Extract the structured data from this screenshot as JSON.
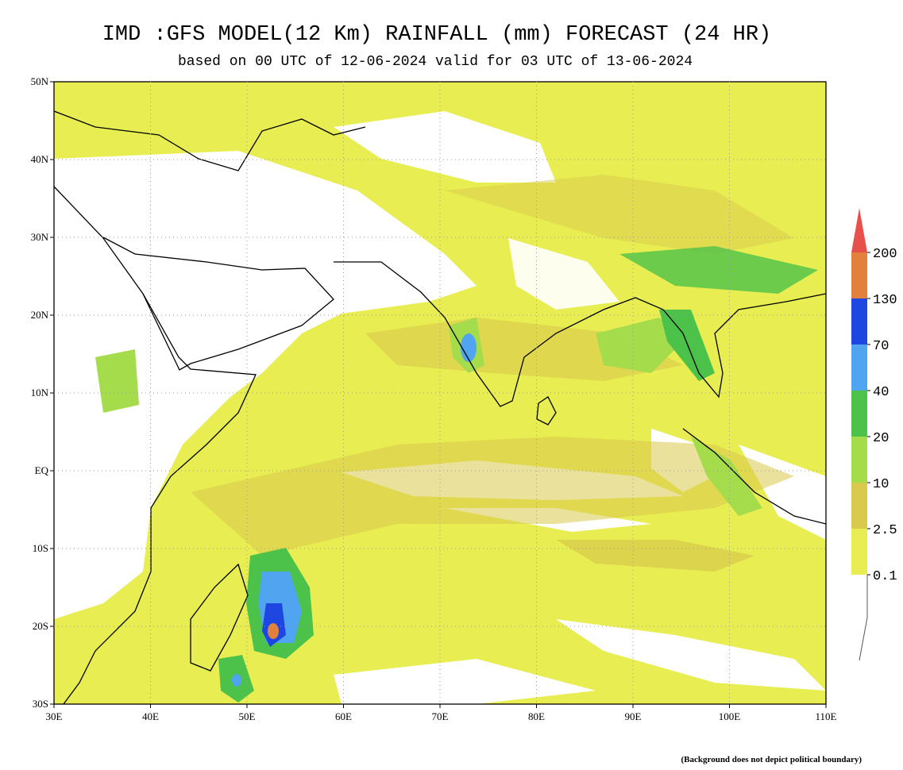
{
  "map": {
    "title": "IMD :GFS MODEL(12 Km) RAINFALL (mm) FORECAST (24 HR)",
    "subtitle": "based on 00 UTC of 12-06-2024 valid for 03 UTC of 13-06-2024",
    "lat_ticks": [
      "50N",
      "40N",
      "30N",
      "20N",
      "10N",
      "EQ",
      "10S",
      "20S",
      "30S"
    ],
    "lon_ticks": [
      "30E",
      "40E",
      "50E",
      "60E",
      "70E",
      "80E",
      "90E",
      "100E",
      "110E"
    ],
    "legend": [
      {
        "label": "200",
        "color": "#e2813e"
      },
      {
        "label": "130",
        "color": "#1e46e0"
      },
      {
        "label": "70",
        "color": "#50a4f0"
      },
      {
        "label": "40",
        "color": "#4cc24a"
      },
      {
        "label": "20",
        "color": "#a4dc4c"
      },
      {
        "label": "10",
        "color": "#d9c94c"
      },
      {
        "label": "2.5",
        "color": "#e8ee52"
      },
      {
        "label": "0.1",
        "color": "#ffffff"
      }
    ],
    "legend_top_color": "#e8504c",
    "footnote": "(Background does not depict political boundary)"
  }
}
